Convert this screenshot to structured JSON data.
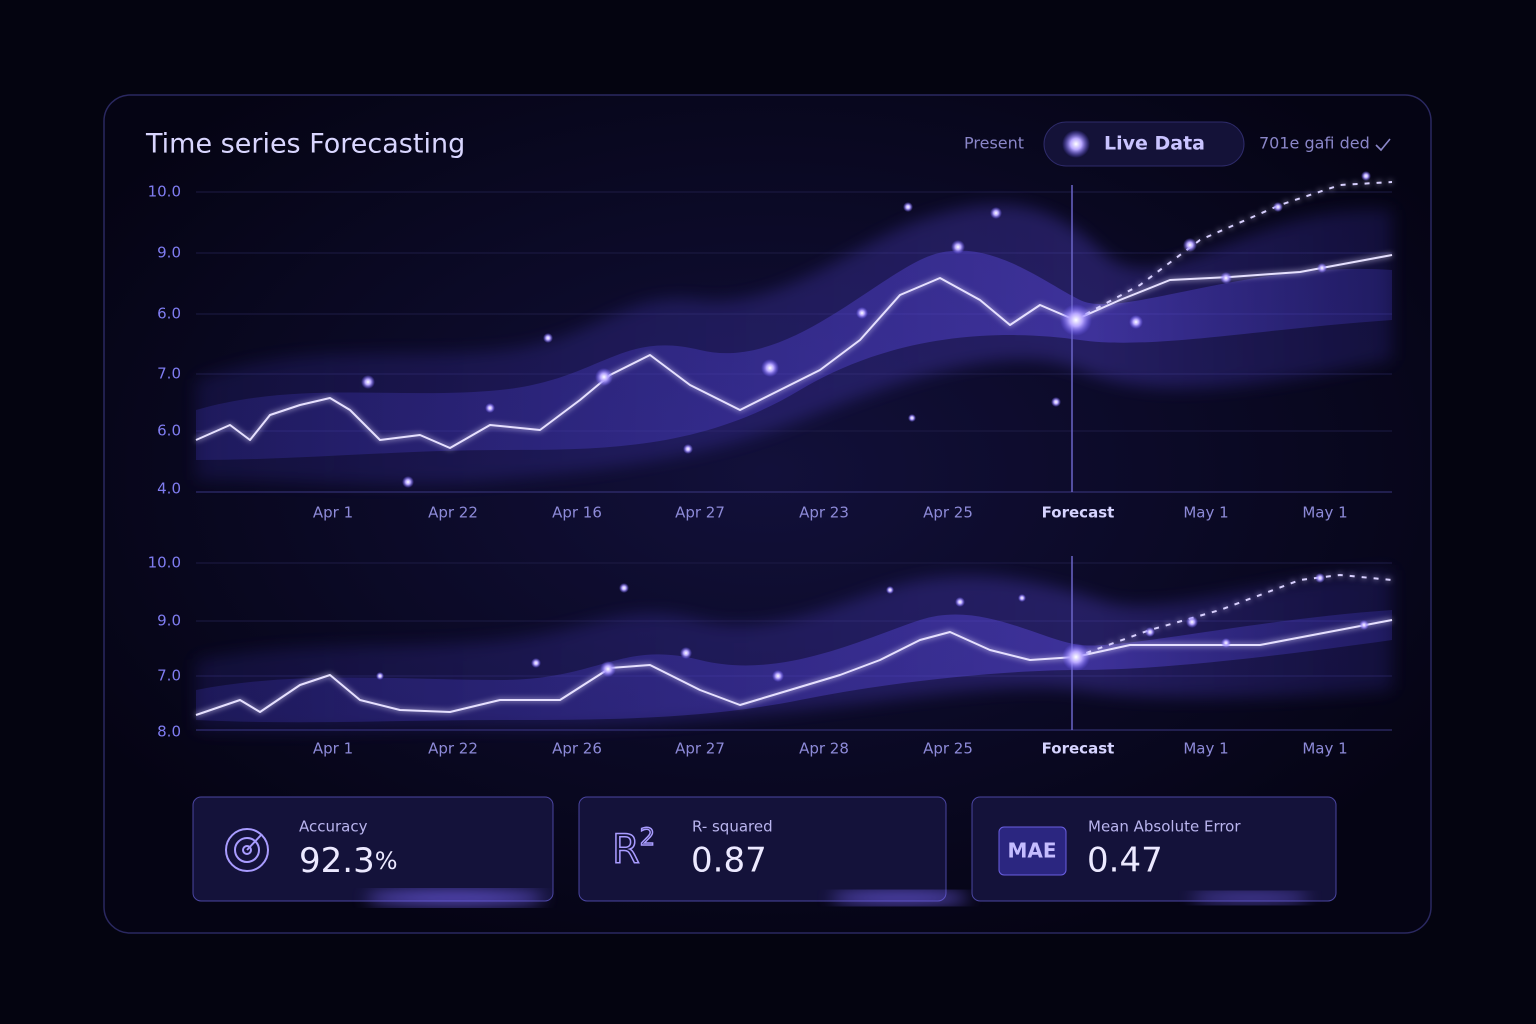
{
  "header": {
    "title": "Time  series Forecasting",
    "mode_label": "Present",
    "live_label": "Live Data",
    "status": "701e gafi ded"
  },
  "charts": [
    {
      "y_labels": [
        "10.0",
        "9.0",
        "6.0",
        "7.0",
        "6.0",
        "4.0"
      ],
      "x_labels": [
        "Apr 1",
        "Apr 22",
        "Apr 16",
        "Apr 27",
        "Apr 23",
        "Apr 25",
        "Forecast",
        "May 1",
        "May 1"
      ]
    },
    {
      "y_labels": [
        "10.0",
        "9.0",
        "7.0",
        "8.0"
      ],
      "x_labels": [
        "Apr 1",
        "Apr 22",
        "Apr 26",
        "Apr 27",
        "Apr 28",
        "Apr 25",
        "Forecast",
        "May 1",
        "May 1"
      ]
    }
  ],
  "metrics": [
    {
      "label": "Accuracy",
      "value": "92.3",
      "unit": "%"
    },
    {
      "icon": "R",
      "icon_sup": "2",
      "label": "R- squared",
      "value": "0.87"
    },
    {
      "icon": "MAE",
      "label": "Mean Absolute Error",
      "value": "0.47"
    }
  ]
}
